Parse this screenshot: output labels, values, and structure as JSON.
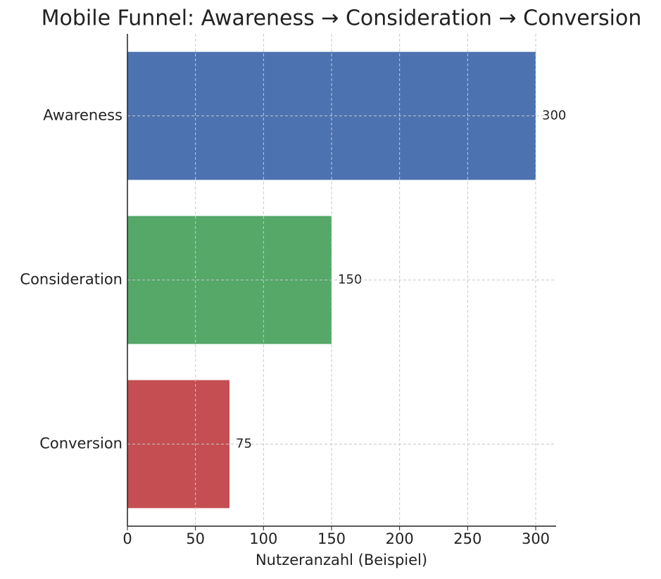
{
  "chart_data": {
    "type": "barh",
    "title": "Mobile Funnel: Awareness → Consideration → Conversion",
    "xlabel": "Nutzeranzahl (Beispiel)",
    "categories": [
      "Awareness",
      "Consideration",
      "Conversion"
    ],
    "values": [
      300,
      150,
      75
    ],
    "colors": [
      "#4c72b0",
      "#55a868",
      "#c44e52"
    ],
    "xlim": [
      0,
      315
    ],
    "xticks": [
      0,
      50,
      100,
      150,
      200,
      250,
      300
    ],
    "grid": true
  }
}
